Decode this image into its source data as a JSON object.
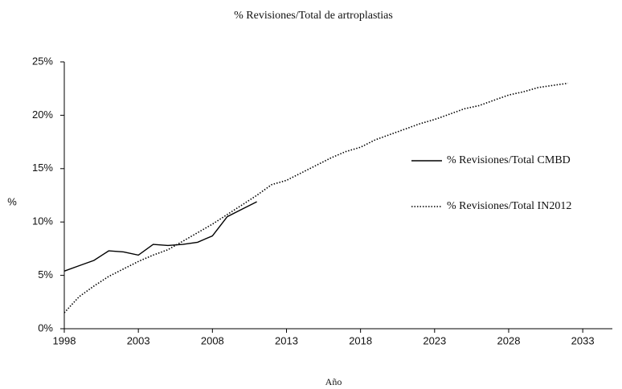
{
  "chart_data": {
    "type": "line",
    "title": "% Revisiones/Total de artroplastias",
    "x_label": "Año",
    "y_label": "%",
    "x": [
      1998,
      1999,
      2000,
      2001,
      2002,
      2003,
      2004,
      2005,
      2006,
      2007,
      2008,
      2009,
      2010,
      2011,
      2012,
      2013,
      2014,
      2015,
      2016,
      2017,
      2018,
      2019,
      2020,
      2021,
      2022,
      2023,
      2024,
      2025,
      2026,
      2027,
      2028,
      2029,
      2030,
      2031,
      2032
    ],
    "series": [
      {
        "name": "% Revisiones/Total CMBD",
        "color": "#000000",
        "line_style": "solid",
        "values": [
          5.4,
          5.9,
          6.4,
          7.3,
          7.2,
          6.9,
          7.9,
          7.8,
          7.9,
          8.1,
          8.7,
          10.5,
          11.2,
          11.9,
          null,
          null,
          null,
          null,
          null,
          null,
          null,
          null,
          null,
          null,
          null,
          null,
          null,
          null,
          null,
          null,
          null,
          null,
          null,
          null,
          null
        ]
      },
      {
        "name": "% Revisiones/Total IN2012",
        "color": "#000000",
        "line_style": "dotted",
        "values": [
          1.5,
          3.0,
          4.0,
          4.9,
          5.6,
          6.3,
          6.9,
          7.4,
          8.2,
          9.0,
          9.8,
          10.7,
          11.6,
          12.5,
          13.5,
          13.9,
          14.6,
          15.3,
          16.0,
          16.6,
          17.0,
          17.7,
          18.2,
          18.7,
          19.2,
          19.6,
          20.1,
          20.6,
          20.9,
          21.4,
          21.9,
          22.2,
          22.6,
          22.8,
          23.0
        ]
      }
    ],
    "xlim": [
      1998,
      2035
    ],
    "xticks": [
      1998,
      2003,
      2008,
      2013,
      2018,
      2023,
      2028,
      2033
    ],
    "ylim": [
      0,
      25
    ],
    "yticks": [
      {
        "value": 0,
        "label": "0%"
      },
      {
        "value": 5,
        "label": "5%"
      },
      {
        "value": 10,
        "label": "10%"
      },
      {
        "value": 15,
        "label": "15%"
      },
      {
        "value": 20,
        "label": "20%"
      },
      {
        "value": 25,
        "label": "25%"
      }
    ],
    "grid": false,
    "legend": "right"
  }
}
